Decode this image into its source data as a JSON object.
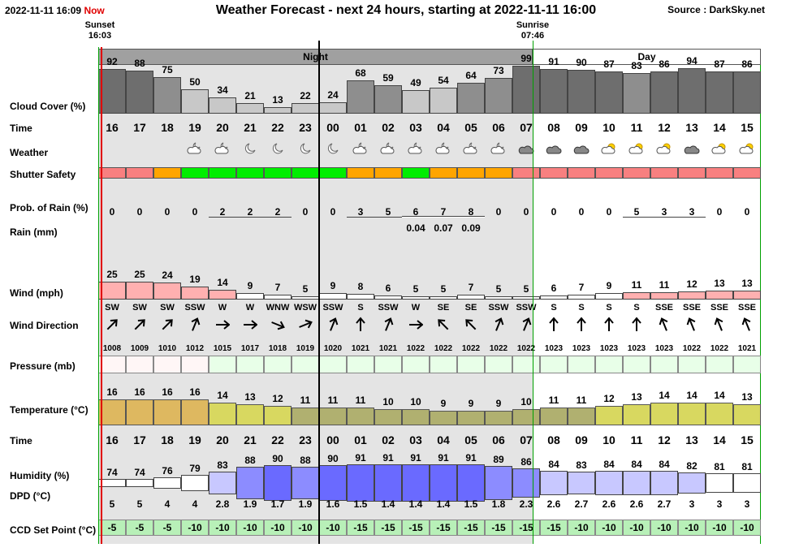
{
  "header": {
    "datetime": "2022-11-11 16:09",
    "now_label": "Now",
    "title": "Weather Forecast - next 24 hours, starting at 2022-11-11 16:00",
    "source": "Source : DarkSky.net"
  },
  "sun": {
    "sunset_label": "Sunset",
    "sunset_time": "16:03",
    "sunrise_label": "Sunrise",
    "sunrise_time": "07:46"
  },
  "bands": {
    "night": "Night",
    "day": "Day"
  },
  "rows": {
    "cloud_cover": "Cloud Cover (%)",
    "time": "Time",
    "weather": "Weather",
    "shutter_safety": "Shutter Safety",
    "prob_rain": "Prob. of Rain (%)",
    "rain": "Rain (mm)",
    "wind": "Wind (mph)",
    "wind_direction": "Wind Direction",
    "pressure": "Pressure (mb)",
    "temperature": "Temperature (°C)",
    "time2": "Time",
    "humidity": "Humidity (%)",
    "dpd": "DPD (°C)",
    "ccd": "CCD Set Point (°C)"
  },
  "hours": [
    "16",
    "17",
    "18",
    "19",
    "20",
    "21",
    "22",
    "23",
    "00",
    "01",
    "02",
    "03",
    "04",
    "05",
    "06",
    "07",
    "08",
    "09",
    "10",
    "11",
    "12",
    "13",
    "14",
    "15"
  ],
  "cloud_cover": [
    92,
    88,
    75,
    50,
    34,
    21,
    13,
    22,
    24,
    68,
    59,
    49,
    54,
    64,
    73,
    99,
    91,
    90,
    87,
    83,
    86,
    94,
    87,
    86
  ],
  "weather_icons": [
    "none",
    "none",
    "none",
    "partly-cloudy-night",
    "partly-cloudy-night",
    "clear-night",
    "clear-night",
    "clear-night",
    "clear-night",
    "partly-cloudy-night",
    "partly-cloudy-night",
    "partly-cloudy-night",
    "partly-cloudy-night",
    "partly-cloudy-night",
    "partly-cloudy-night",
    "cloudy",
    "cloudy",
    "cloudy",
    "partly-cloudy-day",
    "partly-cloudy-day",
    "partly-cloudy-day",
    "cloudy",
    "partly-cloudy-day",
    "partly-cloudy-day"
  ],
  "shutter_safety": [
    "red",
    "red",
    "orange",
    "green",
    "green",
    "green",
    "green",
    "green",
    "green",
    "orange",
    "orange",
    "green",
    "orange",
    "orange",
    "orange",
    "red",
    "red",
    "red",
    "red",
    "red",
    "red",
    "red",
    "red",
    "red"
  ],
  "safety_colors": {
    "red": "#f88080",
    "orange": "#ffa500",
    "green": "#00ee00"
  },
  "prob_rain": [
    0,
    0,
    0,
    0,
    2,
    2,
    2,
    0,
    0,
    3,
    5,
    6,
    7,
    8,
    0,
    0,
    0,
    0,
    0,
    5,
    3,
    3,
    0,
    0
  ],
  "rain_mm": [
    "",
    "",
    "",
    "",
    "",
    "",
    "",
    "",
    "",
    "",
    "",
    "0.04",
    "0.07",
    "0.09",
    "",
    "",
    "",
    "",
    "",
    "",
    "",
    "",
    "",
    ""
  ],
  "wind_mph": [
    25,
    25,
    24,
    19,
    14,
    9,
    7,
    5,
    9,
    8,
    6,
    5,
    5,
    7,
    5,
    5,
    6,
    7,
    9,
    11,
    11,
    12,
    13,
    13
  ],
  "wind_dir": [
    "SW",
    "SW",
    "SW",
    "SSW",
    "W",
    "W",
    "WNW",
    "WSW",
    "SSW",
    "S",
    "SSW",
    "W",
    "SE",
    "SE",
    "SSW",
    "SSW",
    "S",
    "S",
    "S",
    "S",
    "SSE",
    "SSE",
    "SSE",
    "SSE"
  ],
  "pressure_mb": [
    1008,
    1009,
    1010,
    1012,
    1015,
    1017,
    1018,
    1019,
    1020,
    1021,
    1021,
    1022,
    1022,
    1022,
    1022,
    1022,
    1023,
    1023,
    1023,
    1023,
    1023,
    1022,
    1022,
    1021
  ],
  "temperature_c": [
    16,
    16,
    16,
    16,
    14,
    13,
    12,
    11,
    11,
    11,
    10,
    10,
    9,
    9,
    9,
    10,
    11,
    11,
    12,
    13,
    14,
    14,
    14,
    13
  ],
  "humidity_pct": [
    74,
    74,
    76,
    79,
    83,
    88,
    90,
    88,
    90,
    91,
    91,
    91,
    91,
    91,
    89,
    86,
    84,
    83,
    84,
    84,
    84,
    82,
    81,
    81
  ],
  "dpd_c": [
    "5",
    "5",
    "4",
    "4",
    "2.8",
    "1.9",
    "1.7",
    "1.9",
    "1.6",
    "1.5",
    "1.4",
    "1.4",
    "1.4",
    "1.5",
    "1.8",
    "2.3",
    "2.6",
    "2.7",
    "2.6",
    "2.6",
    "2.7",
    "3",
    "3",
    "3"
  ],
  "ccd_set_point": [
    -5,
    -5,
    -5,
    -10,
    -10,
    -10,
    -10,
    -10,
    -10,
    -15,
    -15,
    -15,
    -15,
    -15,
    -15,
    -15,
    -15,
    -10,
    -10,
    -10,
    -10,
    -10,
    -10,
    -10
  ],
  "colors": {
    "night_bg": "#e4e4e4",
    "day_bg": "#ffffff",
    "band_header": "#a0a0a0",
    "cloud_dark": "#6e6e6e",
    "cloud_mid": "#8e8e8e",
    "cloud_light": "#c8c8c8",
    "wind_pink": "#ffb0b0",
    "pressure_green": "#e8ffe8",
    "temp_warm": "#deb860",
    "temp_mid": "#d8d860",
    "temp_cool": "#b0b070",
    "humidity_blue": "#6a6aff",
    "ccd_green": "#b8f0b8",
    "sunset_line": "#e00000",
    "sunrise_line": "#00a000"
  }
}
